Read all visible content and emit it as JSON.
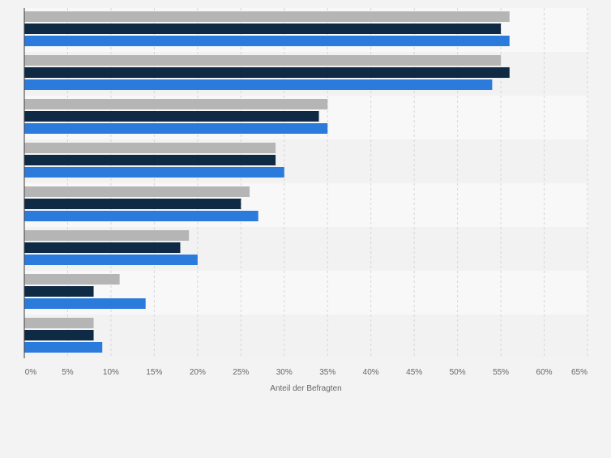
{
  "colors": {
    "background": "#f3f3f3",
    "band_light": "#f8f8f8",
    "band_dark": "#f2f2f2",
    "grid": "#d6d6d6",
    "axis": "#3a3a3a",
    "tick_text": "#666666",
    "series": [
      "#b5b5b5",
      "#0f2a45",
      "#2b7bdc"
    ]
  },
  "chart_data": {
    "type": "bar",
    "orientation": "horizontal",
    "categories": [
      "",
      "",
      "",
      "",
      "",
      "",
      "",
      ""
    ],
    "series": [
      {
        "values": [
          56,
          55,
          35,
          29,
          26,
          19,
          11,
          8
        ]
      },
      {
        "values": [
          55,
          56,
          34,
          29,
          25,
          18,
          8,
          8
        ]
      },
      {
        "values": [
          56,
          54,
          35,
          30,
          27,
          20,
          14,
          9
        ]
      }
    ],
    "xlabel": "Anteil der Befragten",
    "ylabel": "",
    "xlim": [
      0,
      65
    ],
    "xticks": [
      0,
      5,
      10,
      15,
      20,
      25,
      30,
      35,
      40,
      45,
      50,
      55,
      60,
      65
    ],
    "xtick_labels": [
      "0%",
      "5%",
      "10%",
      "15%",
      "20%",
      "25%",
      "30%",
      "35%",
      "40%",
      "45%",
      "50%",
      "55%",
      "60%",
      "65%"
    ],
    "grid": true,
    "legend": "none"
  }
}
